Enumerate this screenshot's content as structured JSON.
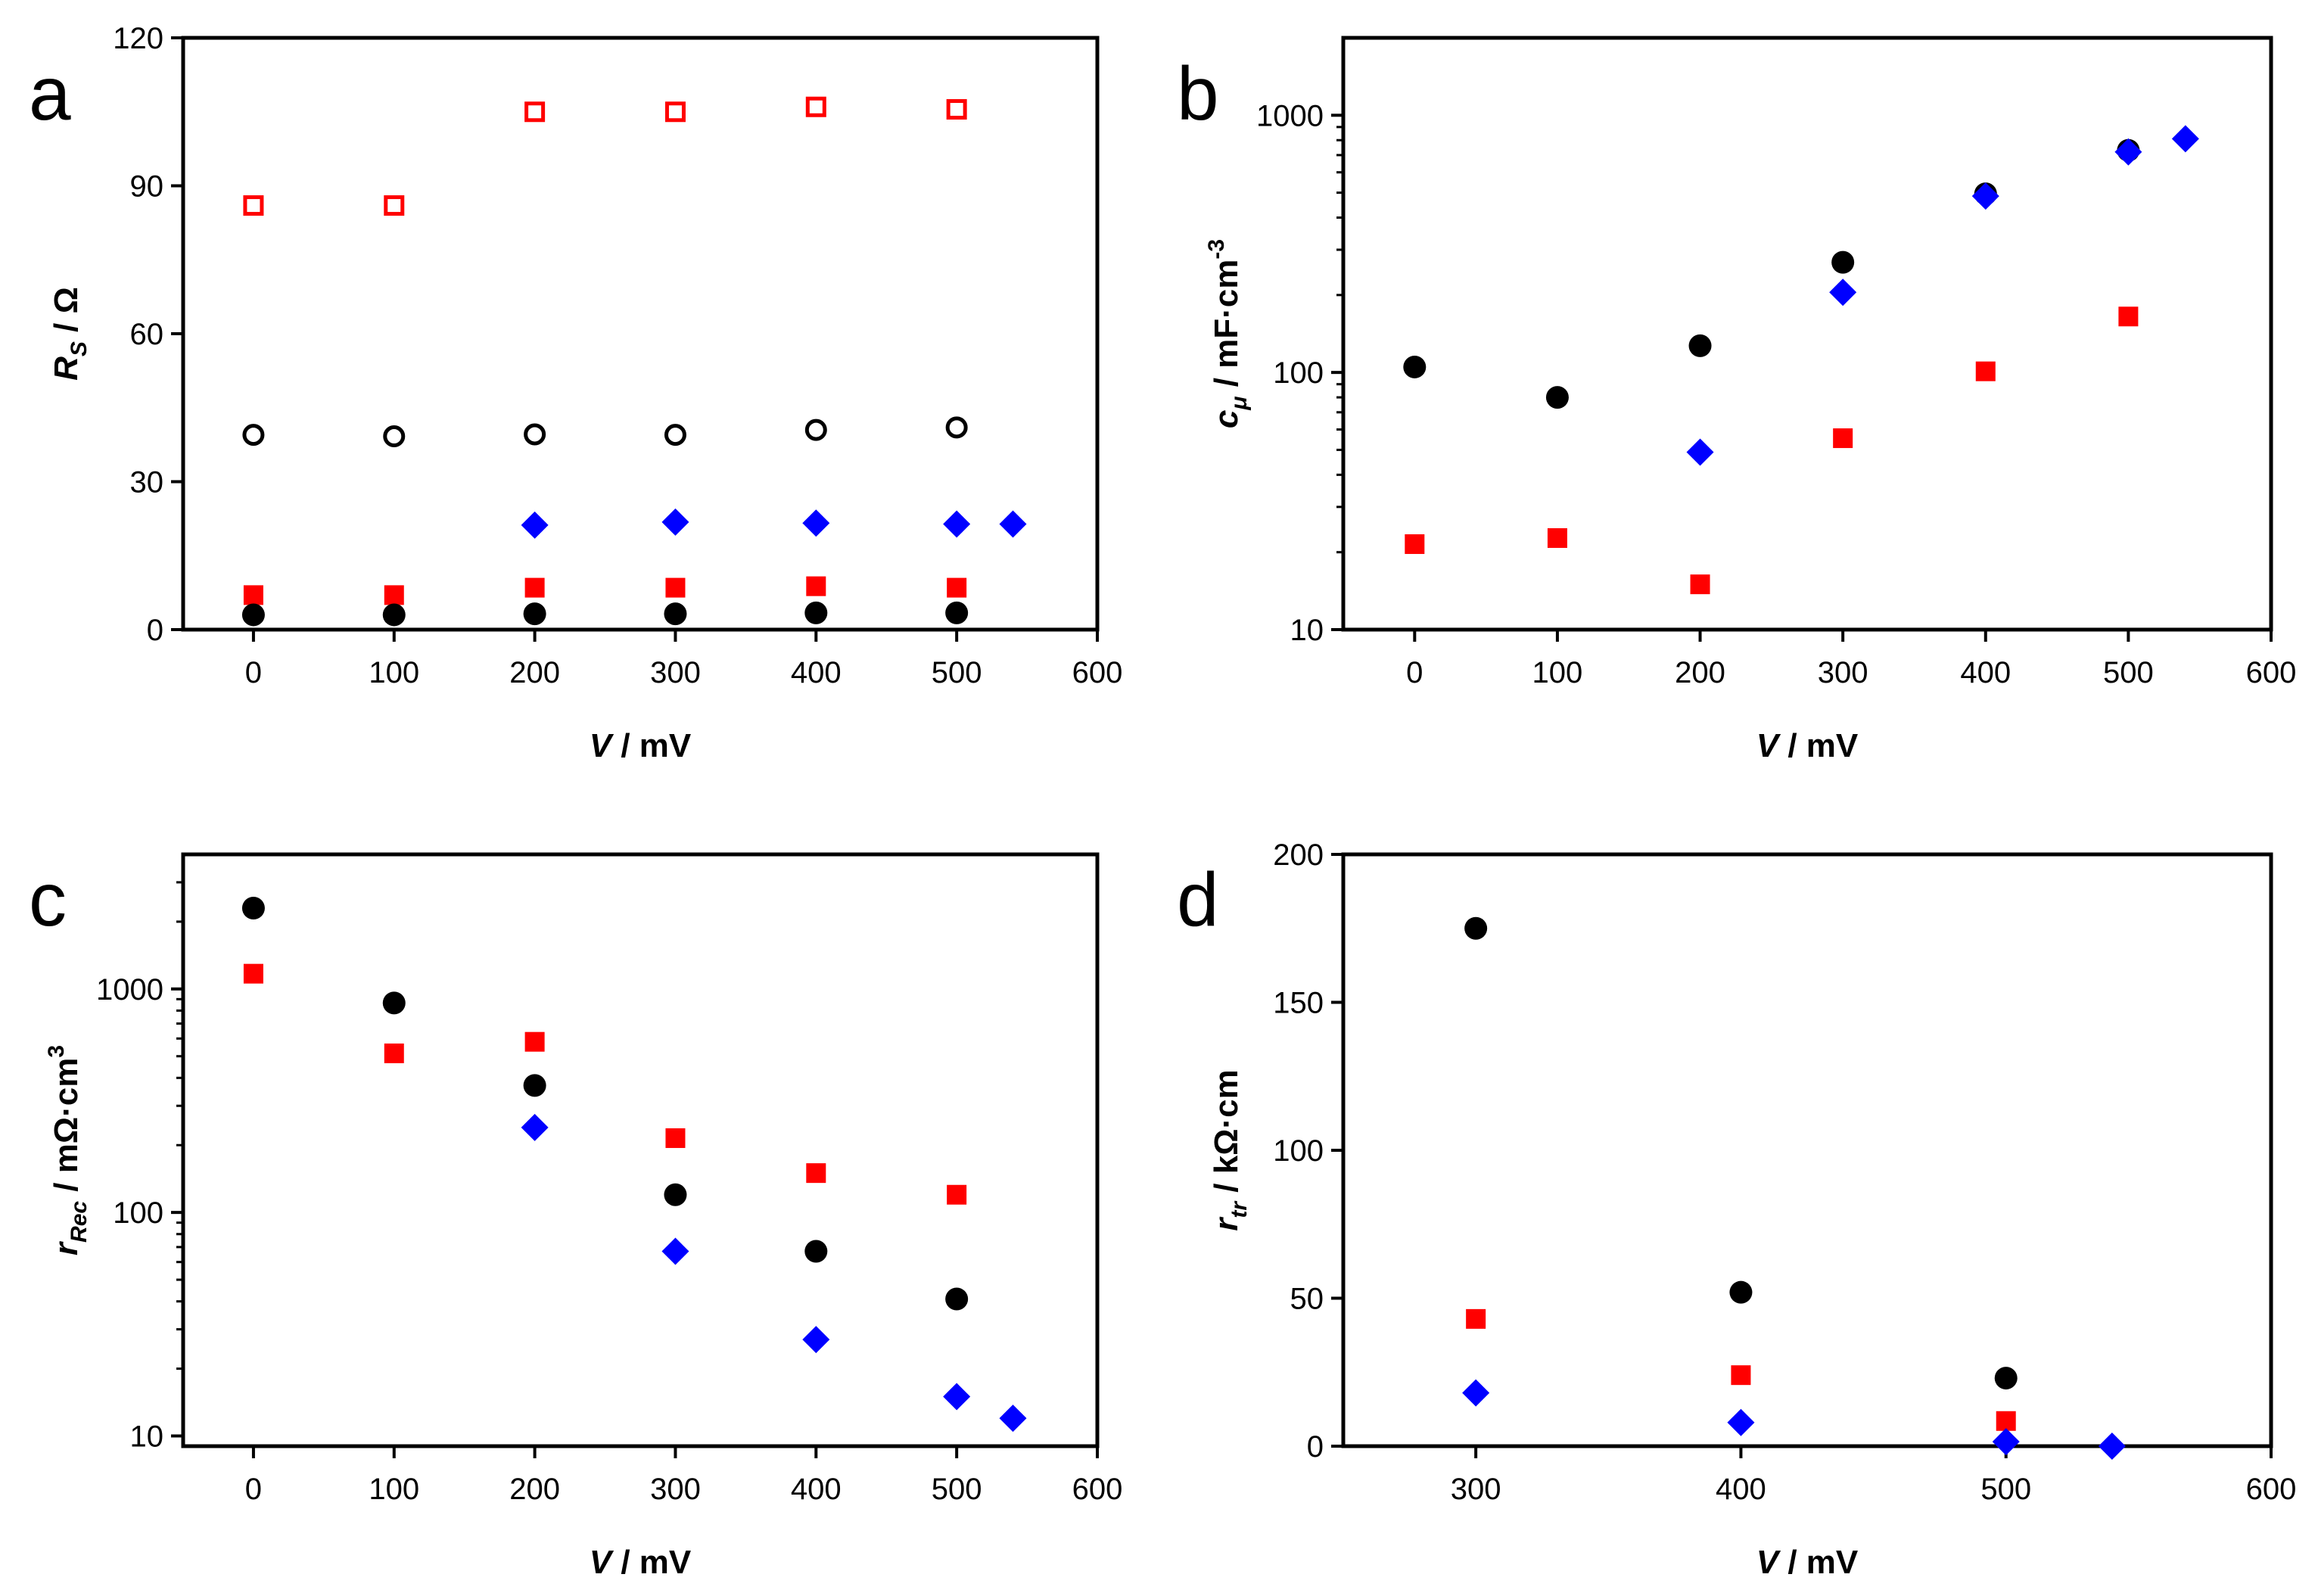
{
  "chart_data": [
    {
      "type": "scatter",
      "panel": "a",
      "yscale": "linear",
      "xlim": [
        -50,
        600
      ],
      "ylim": [
        0,
        120
      ],
      "xticks": [
        0,
        100,
        200,
        300,
        400,
        500,
        600
      ],
      "yticks": [
        0,
        30,
        60,
        90,
        120
      ],
      "xlabel": {
        "var": "V",
        "rest": " / mV"
      },
      "ylabel": {
        "var": "R",
        "sub": "S",
        "rest": " / Ω"
      },
      "series": [
        {
          "name": "open-red-squares",
          "marker": "square",
          "fill": "none",
          "color": "#ff0000",
          "x": [
            0,
            100,
            200,
            300,
            400,
            500
          ],
          "y": [
            86,
            86,
            105,
            105,
            106,
            105.5
          ]
        },
        {
          "name": "open-black-circles",
          "marker": "circle",
          "fill": "none",
          "color": "#000000",
          "x": [
            0,
            100,
            200,
            300,
            400,
            500
          ],
          "y": [
            39.5,
            39.2,
            39.6,
            39.5,
            40.5,
            41
          ]
        },
        {
          "name": "blue-diamonds",
          "marker": "diamond",
          "fill": "solid",
          "color": "#0000ff",
          "x": [
            200,
            300,
            400,
            500,
            540
          ],
          "y": [
            21.2,
            21.8,
            21.6,
            21.4,
            21.4
          ]
        },
        {
          "name": "red-squares",
          "marker": "square",
          "fill": "solid",
          "color": "#ff0000",
          "x": [
            0,
            100,
            200,
            300,
            400,
            500
          ],
          "y": [
            7,
            7,
            8.5,
            8.5,
            8.8,
            8.5
          ]
        },
        {
          "name": "black-circles",
          "marker": "circle",
          "fill": "solid",
          "color": "#000000",
          "x": [
            0,
            100,
            200,
            300,
            400,
            500
          ],
          "y": [
            3,
            3,
            3.2,
            3.2,
            3.4,
            3.4
          ]
        }
      ]
    },
    {
      "type": "scatter",
      "panel": "b",
      "yscale": "log",
      "xlim": [
        -50,
        600
      ],
      "ylim": [
        10,
        2000
      ],
      "xticks": [
        0,
        100,
        200,
        300,
        400,
        500,
        600
      ],
      "yticks": [
        10,
        100,
        1000
      ],
      "xlabel": {
        "var": "V",
        "rest": " / mV"
      },
      "ylabel": {
        "var": "c",
        "sub": "μ",
        "rest": " / mF·cm",
        "sup": "-3"
      },
      "series": [
        {
          "name": "black-circles",
          "marker": "circle",
          "fill": "solid",
          "color": "#000000",
          "x": [
            0,
            100,
            200,
            300,
            400,
            500
          ],
          "y": [
            105,
            80,
            127,
            268,
            495,
            730
          ]
        },
        {
          "name": "blue-diamonds",
          "marker": "diamond",
          "fill": "solid",
          "color": "#0000ff",
          "x": [
            200,
            300,
            400,
            500,
            540
          ],
          "y": [
            49,
            205,
            485,
            720,
            810
          ]
        },
        {
          "name": "red-squares",
          "marker": "square",
          "fill": "solid",
          "color": "#ff0000",
          "x": [
            0,
            100,
            200,
            300,
            400,
            500
          ],
          "y": [
            21.5,
            22.7,
            15,
            55.5,
            101,
            165
          ]
        }
      ]
    },
    {
      "type": "scatter",
      "panel": "c",
      "yscale": "log",
      "xlim": [
        -50,
        600
      ],
      "ylim": [
        9,
        4000
      ],
      "xticks": [
        0,
        100,
        200,
        300,
        400,
        500,
        600
      ],
      "yticks": [
        10,
        100,
        1000
      ],
      "xlabel": {
        "var": "V",
        "rest": " / mV"
      },
      "ylabel": {
        "var": "r",
        "sub": "Rec",
        "rest": " / mΩ·cm",
        "sup": "3"
      },
      "series": [
        {
          "name": "black-circles",
          "marker": "circle",
          "fill": "solid",
          "color": "#000000",
          "x": [
            0,
            100,
            200,
            300,
            400,
            500
          ],
          "y": [
            2300,
            865,
            370,
            120,
            67,
            41
          ]
        },
        {
          "name": "red-squares",
          "marker": "square",
          "fill": "solid",
          "color": "#ff0000",
          "x": [
            0,
            100,
            200,
            300,
            400,
            500
          ],
          "y": [
            1170,
            515,
            580,
            215,
            150,
            120
          ]
        },
        {
          "name": "blue-diamonds",
          "marker": "diamond",
          "fill": "solid",
          "color": "#0000ff",
          "x": [
            200,
            300,
            400,
            500,
            540
          ],
          "y": [
            240,
            67,
            27,
            15,
            12
          ]
        }
      ]
    },
    {
      "type": "scatter",
      "panel": "d",
      "yscale": "linear",
      "xlim": [
        250,
        600
      ],
      "ylim": [
        0,
        200
      ],
      "xticks": [
        300,
        400,
        500,
        600
      ],
      "yticks": [
        0,
        50,
        100,
        150,
        200
      ],
      "xlabel": {
        "var": "V",
        "rest": " / mV"
      },
      "ylabel": {
        "var": "r",
        "sub": "tr",
        "rest": " / kΩ·cm"
      },
      "series": [
        {
          "name": "black-circles",
          "marker": "circle",
          "fill": "solid",
          "color": "#000000",
          "x": [
            300,
            400,
            500
          ],
          "y": [
            175,
            52,
            23
          ]
        },
        {
          "name": "red-squares",
          "marker": "square",
          "fill": "solid",
          "color": "#ff0000",
          "x": [
            300,
            400,
            500
          ],
          "y": [
            43,
            24,
            8.5
          ]
        },
        {
          "name": "blue-diamonds",
          "marker": "diamond",
          "fill": "solid",
          "color": "#0000ff",
          "x": [
            300,
            400,
            500,
            540
          ],
          "y": [
            18,
            8,
            1.5,
            0
          ]
        }
      ]
    }
  ]
}
